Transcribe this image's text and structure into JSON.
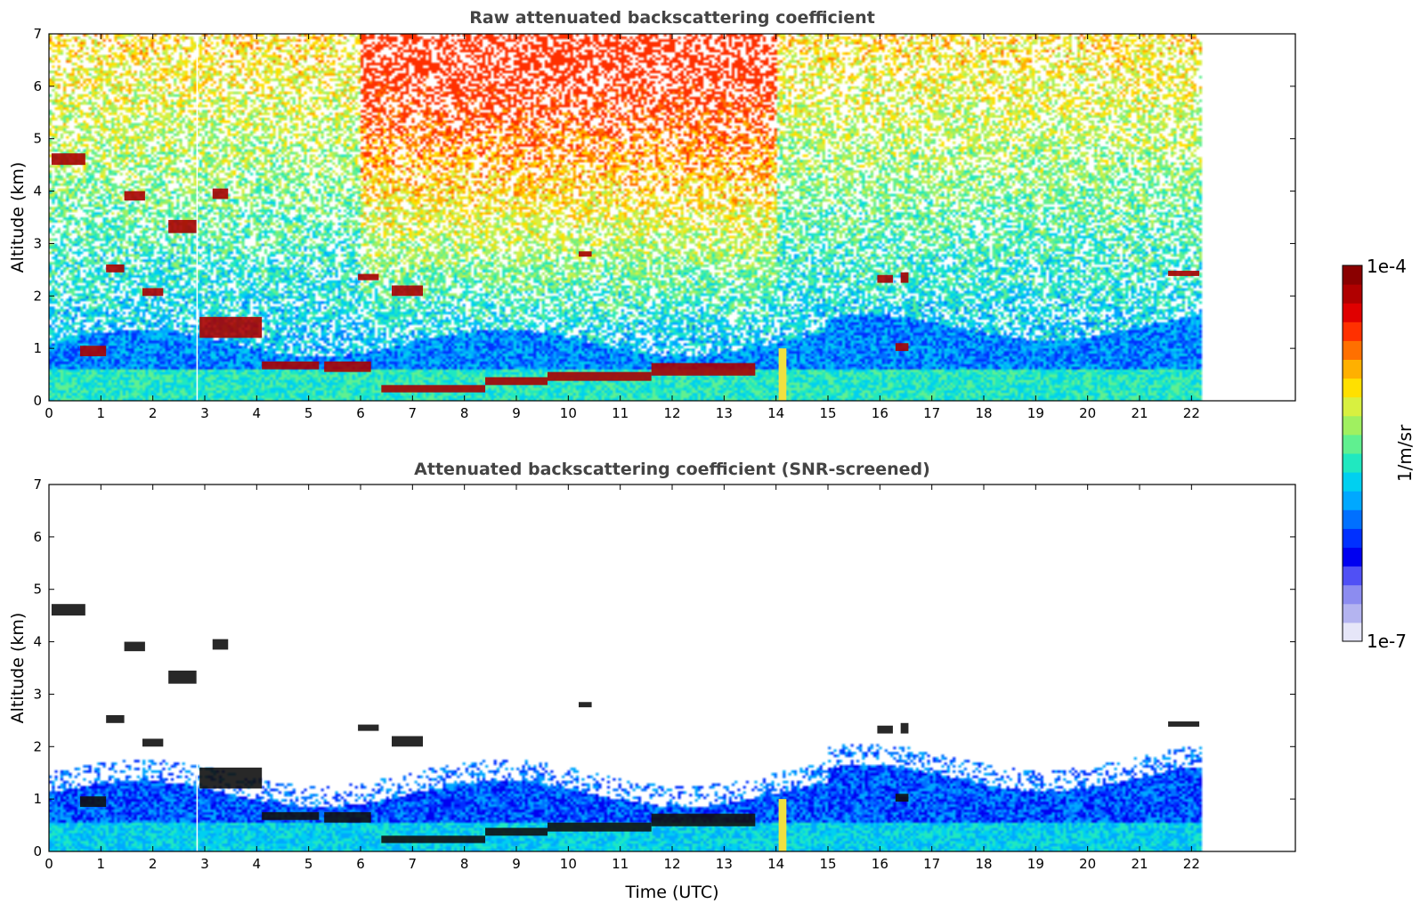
{
  "chart_data": [
    {
      "type": "heatmap",
      "title": "Raw attenuated backscattering coefficient",
      "xlabel": "",
      "ylabel": "Altitude (km)",
      "xlim": [
        0,
        24
      ],
      "ylim": [
        0,
        7
      ],
      "xticks": [
        0,
        1,
        2,
        3,
        4,
        5,
        6,
        7,
        8,
        9,
        10,
        11,
        12,
        13,
        14,
        15,
        16,
        17,
        18,
        19,
        20,
        21,
        22
      ],
      "yticks": [
        0,
        1,
        2,
        3,
        4,
        5,
        6,
        7
      ],
      "data_extent_hours": [
        0,
        22.2
      ],
      "screened": false
    },
    {
      "type": "heatmap",
      "title": "Attenuated backscattering coefficient (SNR-screened)",
      "xlabel": "Time (UTC)",
      "ylabel": "Altitude (km)",
      "xlim": [
        0,
        24
      ],
      "ylim": [
        0,
        7
      ],
      "xticks": [
        0,
        1,
        2,
        3,
        4,
        5,
        6,
        7,
        8,
        9,
        10,
        11,
        12,
        13,
        14,
        15,
        16,
        17,
        18,
        19,
        20,
        21,
        22
      ],
      "yticks": [
        0,
        1,
        2,
        3,
        4,
        5,
        6,
        7
      ],
      "data_extent_hours": [
        0,
        22.2
      ],
      "screened": true
    }
  ],
  "colorbar": {
    "label": "1/m/sr",
    "min_label": "1e-7",
    "max_label": "1e-4",
    "scale": "log",
    "colors": [
      "#e6e6f8",
      "#b4b4f0",
      "#8c8cf0",
      "#5050f5",
      "#0000f0",
      "#0030ff",
      "#0070ff",
      "#00a8ff",
      "#00d0f0",
      "#20e8c0",
      "#60f090",
      "#a0f060",
      "#d8f040",
      "#ffe000",
      "#ffb000",
      "#ff7000",
      "#ff3000",
      "#e00000",
      "#b00000",
      "#8a0000"
    ]
  },
  "features": {
    "clouds": [
      {
        "t0": 0.05,
        "t1": 0.7,
        "z0": 4.5,
        "z1": 4.72
      },
      {
        "t0": 1.45,
        "t1": 1.85,
        "z0": 3.82,
        "z1": 4.0
      },
      {
        "t0": 2.3,
        "t1": 2.85,
        "z0": 3.2,
        "z1": 3.45
      },
      {
        "t0": 3.15,
        "t1": 3.45,
        "z0": 3.85,
        "z1": 4.05
      },
      {
        "t0": 1.1,
        "t1": 1.45,
        "z0": 2.45,
        "z1": 2.6
      },
      {
        "t0": 1.8,
        "t1": 2.2,
        "z0": 2.0,
        "z1": 2.15
      },
      {
        "t0": 5.95,
        "t1": 6.35,
        "z0": 2.3,
        "z1": 2.42
      },
      {
        "t0": 6.6,
        "t1": 7.2,
        "z0": 2.0,
        "z1": 2.2
      },
      {
        "t0": 10.2,
        "t1": 10.45,
        "z0": 2.75,
        "z1": 2.85
      },
      {
        "t0": 15.95,
        "t1": 16.25,
        "z0": 2.25,
        "z1": 2.4
      },
      {
        "t0": 16.4,
        "t1": 16.55,
        "z0": 2.25,
        "z1": 2.45
      },
      {
        "t0": 21.55,
        "t1": 22.15,
        "z0": 2.38,
        "z1": 2.48
      },
      {
        "t0": 0.6,
        "t1": 1.1,
        "z0": 0.85,
        "z1": 1.05
      },
      {
        "t0": 2.9,
        "t1": 4.1,
        "z0": 1.2,
        "z1": 1.6
      },
      {
        "t0": 4.1,
        "t1": 5.2,
        "z0": 0.6,
        "z1": 0.75
      },
      {
        "t0": 5.3,
        "t1": 6.2,
        "z0": 0.55,
        "z1": 0.75
      },
      {
        "t0": 6.4,
        "t1": 8.4,
        "z0": 0.16,
        "z1": 0.3
      },
      {
        "t0": 8.4,
        "t1": 9.6,
        "z0": 0.3,
        "z1": 0.45
      },
      {
        "t0": 9.6,
        "t1": 11.6,
        "z0": 0.38,
        "z1": 0.55
      },
      {
        "t0": 11.6,
        "t1": 13.6,
        "z0": 0.48,
        "z1": 0.72
      },
      {
        "t0": 16.3,
        "t1": 16.55,
        "z0": 0.95,
        "z1": 1.1
      }
    ]
  }
}
